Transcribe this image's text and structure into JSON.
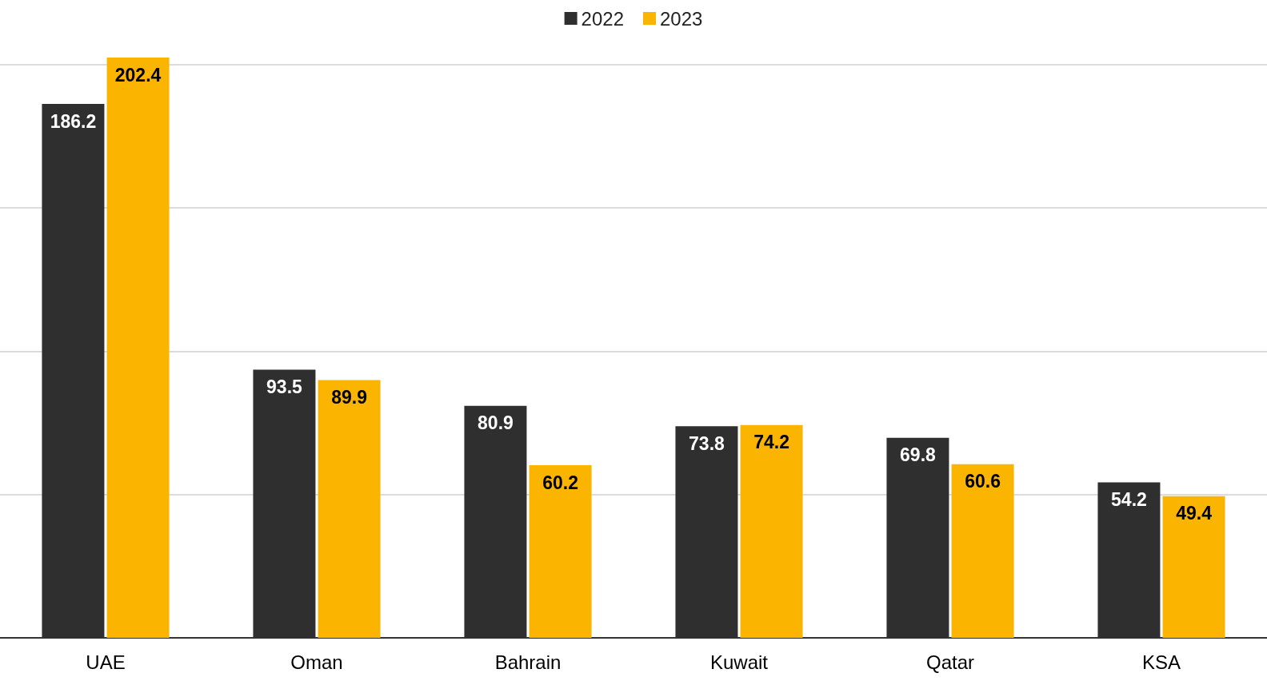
{
  "chart_data": {
    "type": "bar",
    "categories": [
      "UAE",
      "Oman",
      "Bahrain",
      "Kuwait",
      "Qatar",
      "KSA"
    ],
    "series": [
      {
        "name": "2022",
        "color": "#2f2f2f",
        "values": [
          186.2,
          93.5,
          80.9,
          73.8,
          69.8,
          54.2
        ]
      },
      {
        "name": "2023",
        "color": "#fbb400",
        "values": [
          202.4,
          89.9,
          60.2,
          74.2,
          60.6,
          49.4
        ]
      }
    ],
    "yticks": [
      {
        "value": 0,
        "label": null
      },
      {
        "value": 50,
        "label": null
      },
      {
        "value": 100,
        "label": null
      },
      {
        "value": 150,
        "label": null
      },
      {
        "value": 200,
        "label": null
      }
    ],
    "grid": "y",
    "legend": "top",
    "tick_labels": "x",
    "data_labels": true
  }
}
